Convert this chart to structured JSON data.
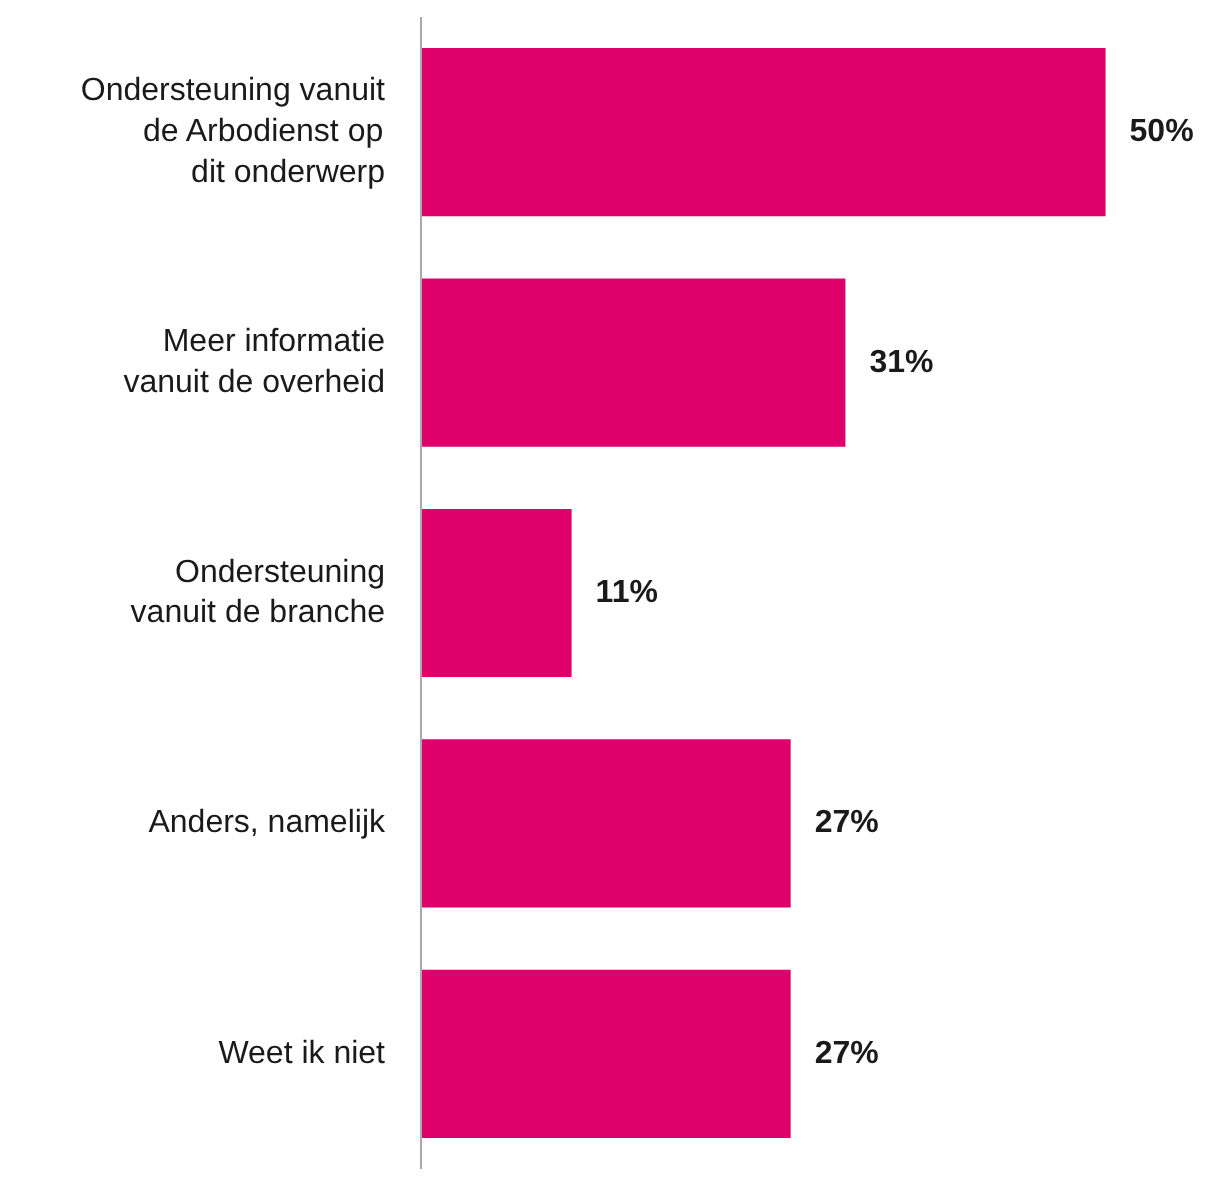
{
  "chart_data": {
    "type": "bar",
    "orientation": "horizontal",
    "categories": [
      "Ondersteuning vanuit\nde Arbodienst op\ndit onderwerp",
      "Meer informatie\nvanuit de overheid",
      "Ondersteuning\nvanuit de branche",
      "Anders, namelijk",
      "Weet ik niet"
    ],
    "values": [
      50,
      31,
      11,
      27,
      27
    ],
    "value_labels": [
      "50%",
      "31%",
      "11%",
      "27%",
      "27%"
    ],
    "color": "#e0006c",
    "grid": false
  }
}
